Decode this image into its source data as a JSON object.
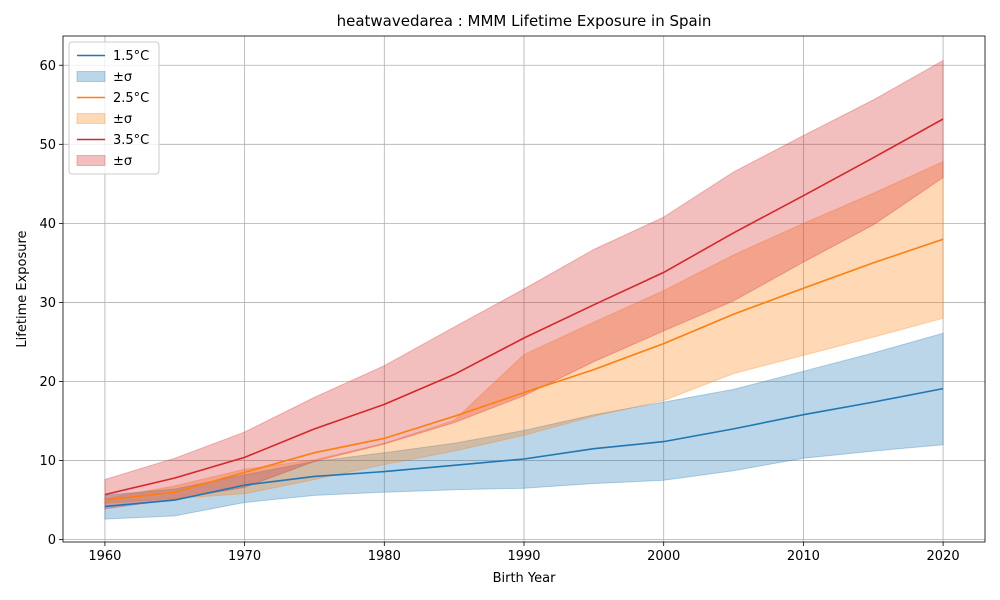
{
  "chart_data": {
    "type": "line",
    "title": "heatwavedarea : MMM Lifetime Exposure in Spain",
    "xlabel": "Birth Year",
    "ylabel": "Lifetime Exposure",
    "xlim": [
      1957,
      2023
    ],
    "ylim": [
      -0.3,
      63.7
    ],
    "xticks": [
      1960,
      1970,
      1980,
      1990,
      2000,
      2010,
      2020
    ],
    "yticks": [
      0,
      10,
      20,
      30,
      40,
      50,
      60
    ],
    "grid": true,
    "legend_position": "top-left",
    "x": [
      1960,
      1965,
      1970,
      1975,
      1980,
      1985,
      1990,
      1995,
      2000,
      2005,
      2010,
      2015,
      2020
    ],
    "series": [
      {
        "name": "1.5°C",
        "band_label": "±σ",
        "color": "#1f77b4",
        "band_color": "#1f77b4",
        "values": [
          4.2,
          5.0,
          6.9,
          8.0,
          8.6,
          9.4,
          10.2,
          11.5,
          12.4,
          14.0,
          15.8,
          17.4,
          19.1
        ],
        "lower": [
          2.6,
          3.0,
          4.7,
          5.6,
          6.0,
          6.3,
          6.5,
          7.1,
          7.5,
          8.7,
          10.3,
          11.2,
          12.0
        ],
        "upper": [
          5.6,
          6.4,
          8.2,
          9.9,
          11.0,
          12.2,
          13.8,
          15.8,
          17.4,
          19.0,
          21.3,
          23.6,
          26.1
        ]
      },
      {
        "name": "2.5°C",
        "band_label": "±σ",
        "color": "#ff7f0e",
        "band_color": "#ff7f0e",
        "values": [
          5.0,
          6.0,
          8.5,
          11.0,
          12.8,
          15.6,
          18.6,
          21.5,
          24.8,
          28.5,
          31.8,
          35.0,
          38.0
        ],
        "lower": [
          4.6,
          5.2,
          5.8,
          7.6,
          9.5,
          11.2,
          13.2,
          15.6,
          17.6,
          21.0,
          23.3,
          25.6,
          28.0
        ],
        "upper": [
          5.2,
          6.8,
          8.9,
          10.1,
          12.2,
          15.1,
          23.4,
          27.5,
          31.5,
          36.0,
          40.0,
          43.8,
          47.8
        ]
      },
      {
        "name": "3.5°C",
        "band_label": "±σ",
        "color": "#d62728",
        "band_color": "#d62728",
        "values": [
          5.7,
          7.8,
          10.4,
          14.0,
          17.1,
          20.9,
          25.5,
          29.7,
          33.8,
          38.8,
          43.5,
          48.3,
          53.2
        ],
        "lower": [
          3.9,
          5.1,
          6.6,
          9.9,
          12.1,
          14.8,
          18.2,
          22.5,
          26.4,
          30.2,
          35.1,
          39.8,
          45.8
        ],
        "upper": [
          7.6,
          10.3,
          13.6,
          18.0,
          22.0,
          26.9,
          31.7,
          36.7,
          40.8,
          46.5,
          51.1,
          55.6,
          60.6
        ]
      }
    ]
  }
}
